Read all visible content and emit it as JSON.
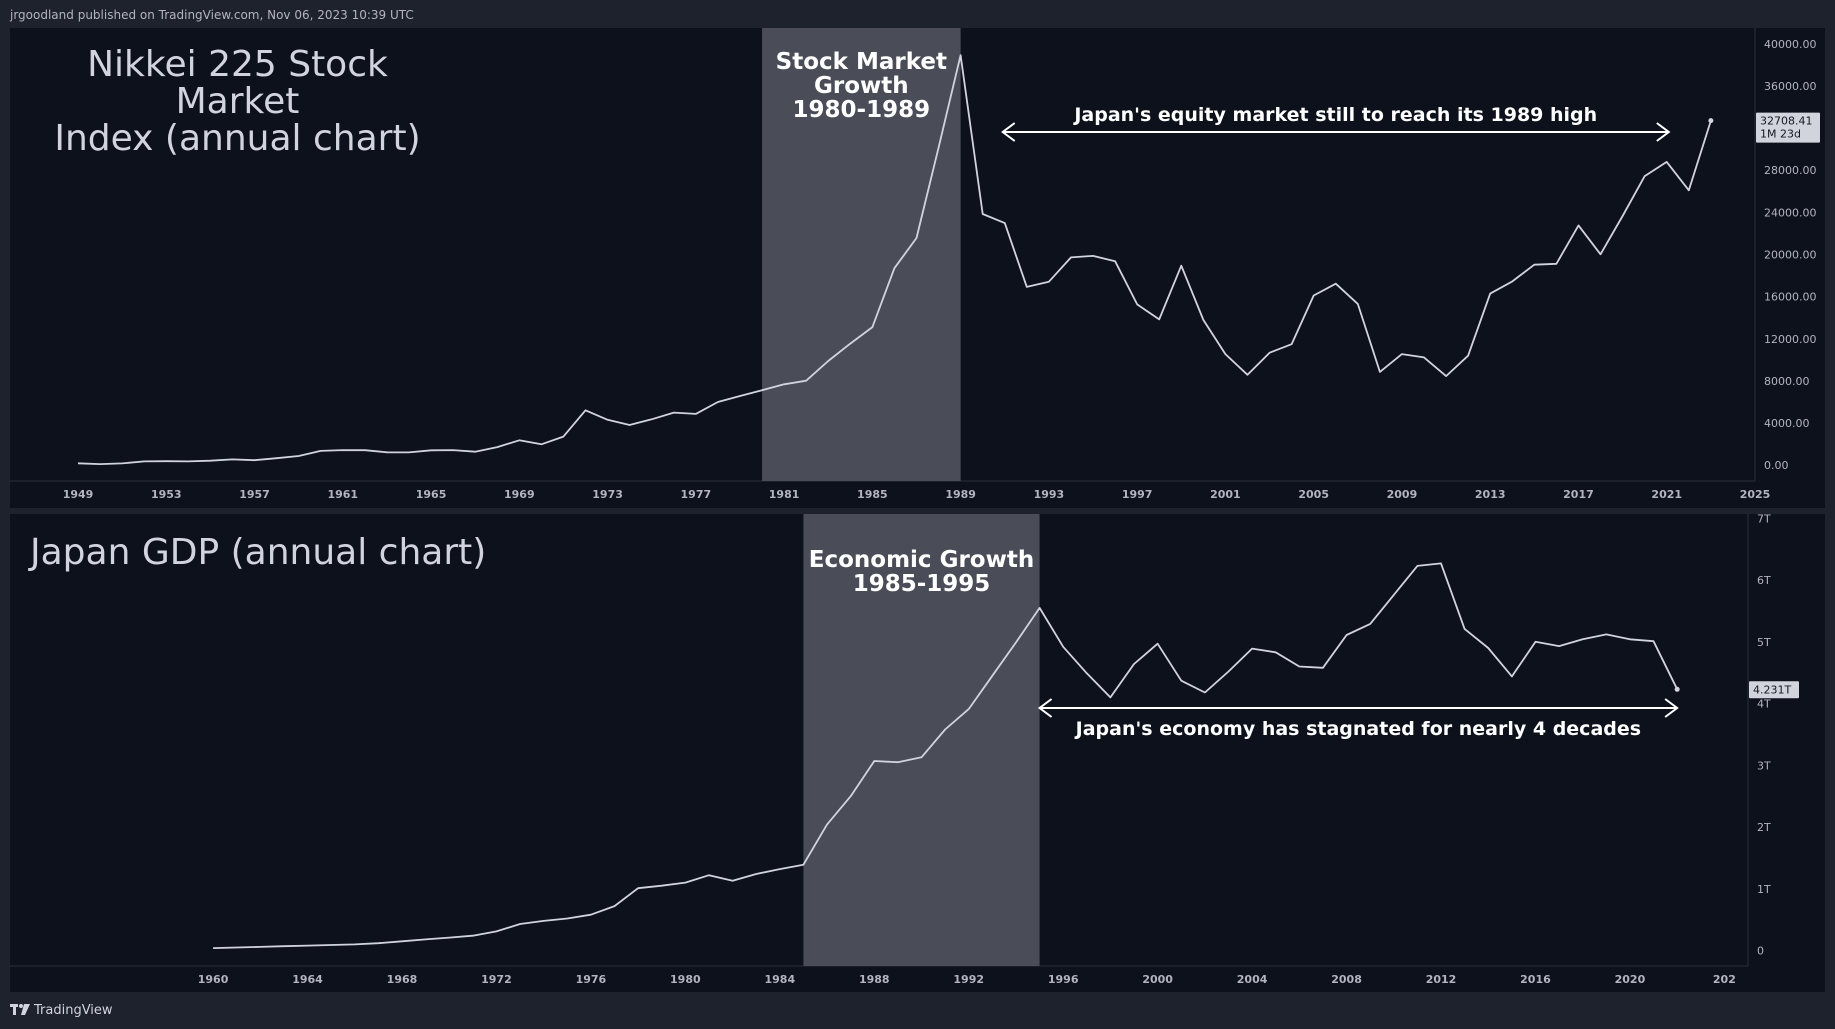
{
  "header": {
    "publisher_line": "jrgoodland published on TradingView.com, Nov 06, 2023 10:39 UTC"
  },
  "footer": {
    "brand": "TradingView"
  },
  "colors": {
    "background": "#0d111c",
    "frame": "#1e222d",
    "line": "#d1d4dc",
    "band": "#4a4d57",
    "text": "#ffffff"
  },
  "chart_data": [
    {
      "type": "line",
      "title": "Nikkei 225 Stock Market\nIndex (annual chart)",
      "x": [
        1949,
        1950,
        1951,
        1952,
        1953,
        1954,
        1955,
        1956,
        1957,
        1958,
        1959,
        1960,
        1961,
        1962,
        1963,
        1964,
        1965,
        1966,
        1967,
        1968,
        1969,
        1970,
        1971,
        1972,
        1973,
        1974,
        1975,
        1976,
        1977,
        1978,
        1979,
        1980,
        1981,
        1982,
        1983,
        1984,
        1985,
        1986,
        1987,
        1988,
        1989,
        1990,
        1991,
        1992,
        1993,
        1994,
        1995,
        1996,
        1997,
        1998,
        1999,
        2000,
        2001,
        2002,
        2003,
        2004,
        2005,
        2006,
        2007,
        2008,
        2009,
        2010,
        2011,
        2012,
        2013,
        2014,
        2015,
        2016,
        2017,
        2018,
        2019,
        2020,
        2021,
        2022,
        2023
      ],
      "y": [
        176,
        100,
        166,
        362,
        377,
        356,
        425,
        549,
        474,
        666,
        874,
        1356,
        1432,
        1420,
        1225,
        1216,
        1417,
        1432,
        1283,
        1715,
        2359,
        1987,
        2714,
        5208,
        4307,
        3817,
        4359,
        4991,
        4866,
        6002,
        6569,
        7116,
        7682,
        8017,
        9894,
        11543,
        13113,
        18701,
        21564,
        30159,
        38916,
        23849,
        22984,
        16925,
        17417,
        19723,
        19868,
        19361,
        15259,
        13842,
        18934,
        13786,
        10543,
        8579,
        10677,
        11489,
        16111,
        17226,
        15308,
        8860,
        10546,
        10229,
        8455,
        10395,
        16291,
        17451,
        19034,
        19114,
        22765,
        20015,
        23657,
        27444,
        28792,
        26095,
        32708.41
      ],
      "x_ticks": [
        "1949",
        "1953",
        "1957",
        "1961",
        "1965",
        "1969",
        "1973",
        "1977",
        "1981",
        "1985",
        "1989",
        "1993",
        "1997",
        "2001",
        "2005",
        "2009",
        "2013",
        "2017",
        "2021",
        "2025"
      ],
      "y_ticks": [
        "40000.00",
        "36000.00",
        "32000.00",
        "28000.00",
        "24000.00",
        "20000.00",
        "16000.00",
        "12000.00",
        "8000.00",
        "4000.00",
        "0.00"
      ],
      "xlim": [
        1949,
        2025
      ],
      "ylim": [
        -1500,
        41500
      ],
      "last_value_label": "32708.41",
      "last_value_sublabel": "1M 23d",
      "highlight": {
        "from": 1980,
        "to": 1989,
        "label": [
          "Stock Market",
          "Growth",
          "1980-1989"
        ]
      },
      "annotation": {
        "text": "Japan's equity market still to reach its 1989 high",
        "from": 1990,
        "to": 2022
      }
    },
    {
      "type": "line",
      "title": "Japan GDP (annual chart)",
      "x": [
        1960,
        1961,
        1962,
        1963,
        1964,
        1965,
        1966,
        1967,
        1968,
        1969,
        1970,
        1971,
        1972,
        1973,
        1974,
        1975,
        1976,
        1977,
        1978,
        1979,
        1980,
        1981,
        1982,
        1983,
        1984,
        1985,
        1986,
        1987,
        1988,
        1989,
        1990,
        1991,
        1992,
        1993,
        1994,
        1995,
        1996,
        1997,
        1998,
        1999,
        2000,
        2001,
        2002,
        2003,
        2004,
        2005,
        2006,
        2007,
        2008,
        2009,
        2010,
        2011,
        2012,
        2013,
        2014,
        2015,
        2016,
        2017,
        2018,
        2019,
        2020,
        2021,
        2022
      ],
      "y": [
        0.04,
        0.05,
        0.06,
        0.07,
        0.08,
        0.09,
        0.1,
        0.12,
        0.15,
        0.18,
        0.21,
        0.24,
        0.31,
        0.43,
        0.48,
        0.52,
        0.58,
        0.72,
        1.01,
        1.05,
        1.1,
        1.22,
        1.13,
        1.24,
        1.32,
        1.39,
        2.04,
        2.5,
        3.07,
        3.05,
        3.13,
        3.58,
        3.91,
        4.45,
        4.99,
        5.55,
        4.92,
        4.49,
        4.1,
        4.64,
        4.97,
        4.37,
        4.18,
        4.52,
        4.89,
        4.83,
        4.6,
        4.58,
        5.11,
        5.29,
        5.76,
        6.23,
        6.27,
        5.21,
        4.9,
        4.44,
        5.0,
        4.93,
        5.04,
        5.12,
        5.04,
        5.01,
        4.231
      ],
      "x_ticks": [
        "1960",
        "1964",
        "1968",
        "1972",
        "1976",
        "1980",
        "1984",
        "1988",
        "1992",
        "1996",
        "2000",
        "2004",
        "2008",
        "2012",
        "2016",
        "2020",
        "202"
      ],
      "y_ticks": [
        "7T",
        "6T",
        "5T",
        "4T",
        "3T",
        "2T",
        "1T",
        "0"
      ],
      "xlim": [
        1955,
        2025
      ],
      "ylim": [
        -0.25,
        7.07
      ],
      "last_value_label": "4.231T",
      "highlight": {
        "from": 1985,
        "to": 1995,
        "label": [
          "Economic Growth",
          "1985-1995"
        ]
      },
      "annotation": {
        "text": "Japan's economy has stagnated for nearly 4 decades",
        "from": 1995,
        "to": 2022
      }
    }
  ]
}
